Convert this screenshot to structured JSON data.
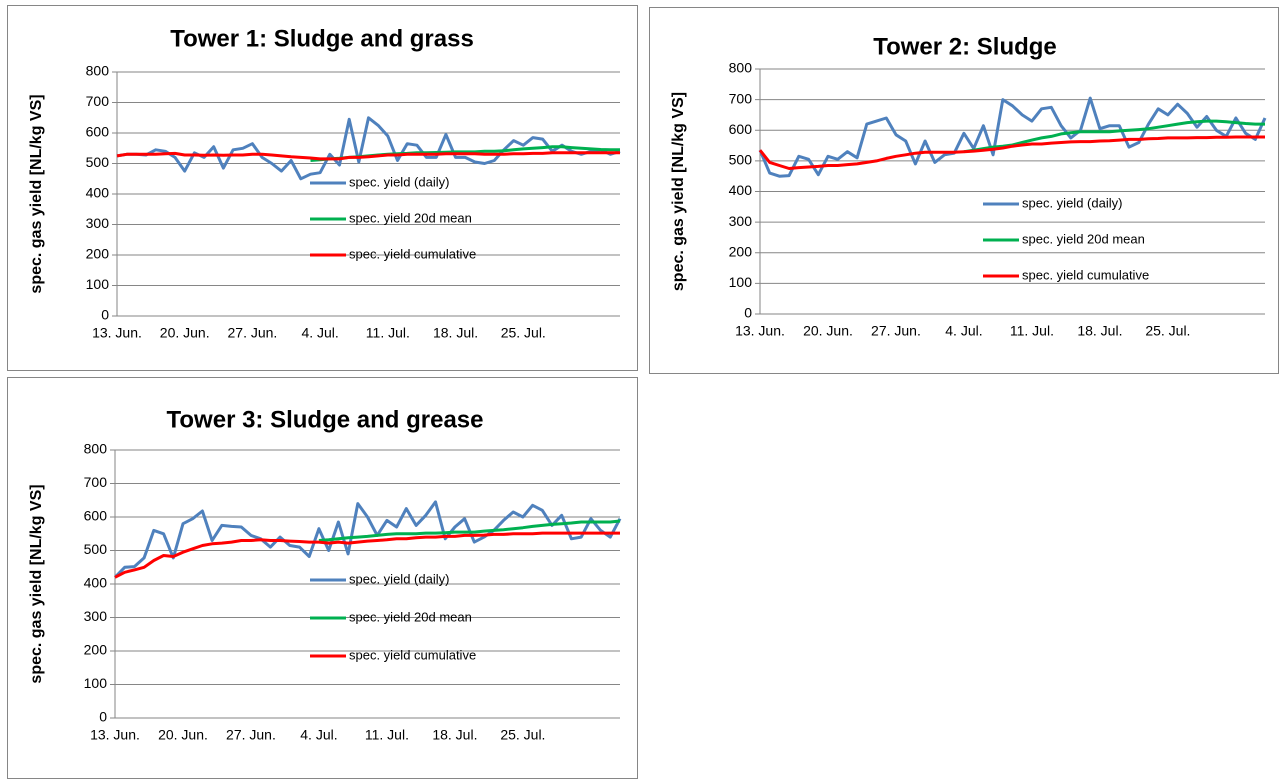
{
  "chart_data": [
    {
      "type": "line",
      "title": "Tower 1: Sludge and grass",
      "y_label": "spec. gas yield [NL/kg VS]",
      "categories": [
        "13. Jun.",
        null,
        null,
        null,
        null,
        null,
        null,
        "20. Jun.",
        null,
        null,
        null,
        null,
        null,
        null,
        "27. Jun.",
        null,
        null,
        null,
        null,
        null,
        null,
        "4. Jul.",
        null,
        null,
        null,
        null,
        null,
        null,
        "11. Jul.",
        null,
        null,
        null,
        null,
        null,
        null,
        "18. Jul.",
        null,
        null,
        null,
        null,
        null,
        null,
        "25. Jul.",
        null,
        null,
        null,
        null,
        null,
        null,
        null,
        null,
        null,
        null
      ],
      "ylim": [
        0,
        800
      ],
      "yticks": [
        0,
        100,
        200,
        300,
        400,
        500,
        600,
        700,
        800
      ],
      "grid": true,
      "series": [
        {
          "name": "spec. yield (daily)",
          "color": "#4f81bd",
          "values": [
            525,
            530,
            530,
            528,
            545,
            540,
            520,
            475,
            535,
            520,
            555,
            485,
            545,
            550,
            565,
            520,
            500,
            475,
            510,
            450,
            465,
            470,
            530,
            495,
            645,
            505,
            650,
            625,
            590,
            510,
            565,
            560,
            520,
            520,
            595,
            520,
            520,
            505,
            500,
            510,
            545,
            575,
            560,
            585,
            580,
            540,
            560,
            540,
            530,
            540,
            545,
            530,
            540
          ]
        },
        {
          "name": "spec. yield 20d mean",
          "color": "#00b050",
          "values": [
            null,
            null,
            null,
            null,
            null,
            null,
            null,
            null,
            null,
            null,
            null,
            null,
            null,
            null,
            null,
            null,
            null,
            null,
            null,
            null,
            510,
            512,
            515,
            517,
            520,
            522,
            525,
            528,
            530,
            532,
            533,
            535,
            535,
            536,
            537,
            538,
            538,
            538,
            540,
            540,
            542,
            545,
            548,
            550,
            552,
            555,
            555,
            552,
            550,
            548,
            546,
            545,
            545
          ]
        },
        {
          "name": "spec. yield cumulative",
          "color": "#ff0000",
          "values": [
            525,
            530,
            530,
            530,
            530,
            532,
            533,
            528,
            528,
            527,
            528,
            527,
            528,
            528,
            530,
            530,
            528,
            525,
            522,
            520,
            518,
            515,
            515,
            515,
            520,
            520,
            522,
            525,
            528,
            528,
            530,
            530,
            530,
            530,
            532,
            532,
            532,
            532,
            530,
            530,
            530,
            532,
            532,
            533,
            533,
            535,
            535,
            535,
            535,
            535,
            535,
            535,
            535
          ]
        }
      ]
    },
    {
      "type": "line",
      "title": "Tower 2: Sludge",
      "y_label": "spec. gas yield [NL/kg VS]",
      "categories": [
        "13. Jun.",
        null,
        null,
        null,
        null,
        null,
        null,
        "20. Jun.",
        null,
        null,
        null,
        null,
        null,
        null,
        "27. Jun.",
        null,
        null,
        null,
        null,
        null,
        null,
        "4. Jul.",
        null,
        null,
        null,
        null,
        null,
        null,
        "11. Jul.",
        null,
        null,
        null,
        null,
        null,
        null,
        "18. Jul.",
        null,
        null,
        null,
        null,
        null,
        null,
        "25. Jul.",
        null,
        null,
        null,
        null,
        null,
        null,
        null,
        null,
        null,
        null
      ],
      "ylim": [
        0,
        800
      ],
      "yticks": [
        0,
        100,
        200,
        300,
        400,
        500,
        600,
        700,
        800
      ],
      "grid": true,
      "series": [
        {
          "name": "spec. yield (daily)",
          "color": "#4f81bd",
          "values": [
            535,
            460,
            450,
            452,
            515,
            505,
            455,
            515,
            505,
            530,
            510,
            620,
            630,
            640,
            585,
            565,
            490,
            565,
            495,
            520,
            525,
            590,
            540,
            615,
            520,
            700,
            680,
            650,
            630,
            670,
            675,
            615,
            575,
            600,
            705,
            605,
            615,
            615,
            545,
            560,
            620,
            670,
            650,
            685,
            655,
            610,
            645,
            600,
            580,
            640,
            590,
            570,
            640
          ]
        },
        {
          "name": "spec. yield 20d mean",
          "color": "#00b050",
          "values": [
            null,
            null,
            null,
            null,
            null,
            null,
            null,
            null,
            null,
            null,
            null,
            null,
            null,
            null,
            null,
            null,
            null,
            null,
            null,
            null,
            null,
            530,
            535,
            540,
            545,
            548,
            552,
            560,
            568,
            575,
            580,
            588,
            592,
            595,
            595,
            595,
            595,
            598,
            600,
            602,
            605,
            610,
            615,
            620,
            625,
            628,
            630,
            630,
            628,
            625,
            622,
            620,
            620
          ]
        },
        {
          "name": "spec. yield cumulative",
          "color": "#ff0000",
          "values": [
            535,
            495,
            485,
            475,
            478,
            480,
            482,
            485,
            485,
            488,
            490,
            495,
            500,
            508,
            515,
            520,
            525,
            528,
            528,
            528,
            528,
            530,
            532,
            535,
            538,
            542,
            548,
            552,
            555,
            555,
            558,
            560,
            562,
            563,
            563,
            565,
            566,
            568,
            570,
            570,
            572,
            573,
            575,
            575,
            575,
            576,
            576,
            577,
            577,
            578,
            578,
            578,
            578
          ]
        }
      ]
    },
    {
      "type": "line",
      "title": "Tower 3: Sludge and grease",
      "y_label": "spec. gas yield [NL/kg VS]",
      "categories": [
        "13. Jun.",
        null,
        null,
        null,
        null,
        null,
        null,
        "20. Jun.",
        null,
        null,
        null,
        null,
        null,
        null,
        "27. Jun.",
        null,
        null,
        null,
        null,
        null,
        null,
        "4. Jul.",
        null,
        null,
        null,
        null,
        null,
        null,
        "11. Jul.",
        null,
        null,
        null,
        null,
        null,
        null,
        "18. Jul.",
        null,
        null,
        null,
        null,
        null,
        null,
        "25. Jul.",
        null,
        null,
        null,
        null,
        null,
        null,
        null,
        null,
        null,
        null
      ],
      "ylim": [
        0,
        800
      ],
      "yticks": [
        0,
        100,
        200,
        300,
        400,
        500,
        600,
        700,
        800
      ],
      "grid": true,
      "series": [
        {
          "name": "spec. yield (daily)",
          "color": "#4f81bd",
          "values": [
            420,
            450,
            452,
            478,
            560,
            550,
            478,
            580,
            595,
            618,
            530,
            575,
            572,
            570,
            545,
            535,
            510,
            540,
            515,
            510,
            482,
            565,
            500,
            585,
            490,
            640,
            600,
            545,
            590,
            570,
            625,
            575,
            605,
            645,
            535,
            570,
            595,
            525,
            540,
            560,
            590,
            615,
            600,
            635,
            620,
            575,
            605,
            535,
            540,
            595,
            560,
            540,
            595
          ]
        },
        {
          "name": "spec. yield 20d mean",
          "color": "#00b050",
          "values": [
            null,
            null,
            null,
            null,
            null,
            null,
            null,
            null,
            null,
            null,
            null,
            null,
            null,
            null,
            null,
            null,
            null,
            null,
            null,
            null,
            null,
            530,
            532,
            535,
            538,
            540,
            542,
            545,
            548,
            550,
            550,
            550,
            552,
            552,
            553,
            555,
            555,
            555,
            558,
            560,
            562,
            565,
            568,
            572,
            575,
            578,
            580,
            582,
            585,
            585,
            585,
            585,
            588
          ]
        },
        {
          "name": "spec. yield cumulative",
          "color": "#ff0000",
          "values": [
            420,
            435,
            442,
            450,
            470,
            485,
            482,
            495,
            505,
            515,
            520,
            522,
            525,
            530,
            530,
            532,
            530,
            530,
            528,
            527,
            525,
            525,
            522,
            525,
            522,
            525,
            528,
            530,
            532,
            535,
            535,
            538,
            540,
            540,
            542,
            542,
            545,
            545,
            546,
            548,
            548,
            550,
            550,
            550,
            552,
            552,
            552,
            552,
            552,
            552,
            552,
            552,
            552
          ]
        }
      ]
    }
  ]
}
